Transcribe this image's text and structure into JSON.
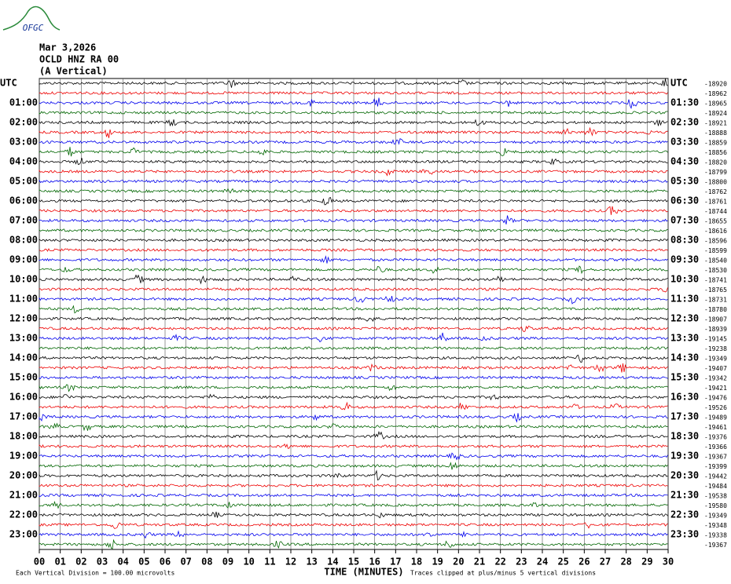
{
  "logo": "OFGC",
  "header": {
    "date": "Mar 3,2026",
    "station": "OCLD HNZ RA 00",
    "component": "(A Vertical)"
  },
  "left_labels": [
    "UTC",
    "01:00",
    "02:00",
    "03:00",
    "04:00",
    "05:00",
    "06:00",
    "07:00",
    "08:00",
    "09:00",
    "10:00",
    "11:00",
    "12:00",
    "13:00",
    "14:00",
    "15:00",
    "16:00",
    "17:00",
    "18:00",
    "19:00",
    "20:00",
    "21:00",
    "22:00",
    "23:00"
  ],
  "right_labels": [
    "UTC",
    "01:30",
    "02:30",
    "03:30",
    "04:30",
    "05:30",
    "06:30",
    "07:30",
    "08:30",
    "09:30",
    "10:30",
    "11:30",
    "12:30",
    "13:30",
    "14:30",
    "15:30",
    "16:30",
    "17:30",
    "18:30",
    "19:30",
    "20:30",
    "21:30",
    "22:30",
    "23:30"
  ],
  "trace_offsets": [
    "-18920",
    "-18962",
    "-18965",
    "-18924",
    "-18921",
    "-18888",
    "-18859",
    "-18856",
    "-18820",
    "-18799",
    "-18800",
    "-18762",
    "-18761",
    "-18744",
    "-18655",
    "-18616",
    "-18596",
    "-18599",
    "-18540",
    "-18530",
    "-18741",
    "-18765",
    "-18731",
    "-18780",
    "-18907",
    "-18939",
    "-19145",
    "-19238",
    "-19349",
    "-19407",
    "-19342",
    "-19421",
    "-19476",
    "-19526",
    "-19489",
    "-19461",
    "-19376",
    "-19366",
    "-19367",
    "-19399",
    "-19442",
    "-19484",
    "-19538",
    "-19580",
    "-19349",
    "-19348",
    "-19338",
    "-19367"
  ],
  "x_axis": {
    "ticks": [
      "00",
      "01",
      "02",
      "03",
      "04",
      "05",
      "06",
      "07",
      "08",
      "09",
      "10",
      "11",
      "12",
      "13",
      "14",
      "15",
      "16",
      "17",
      "18",
      "19",
      "20",
      "21",
      "22",
      "23",
      "24",
      "25",
      "26",
      "27",
      "28",
      "29",
      "30"
    ],
    "label": "TIME (MINUTES)"
  },
  "footer": {
    "scale": "Each Vertical Division =  100.00 microvolts",
    "clip": "Traces clipped at plus/minus 5 vertical divisions"
  }
}
